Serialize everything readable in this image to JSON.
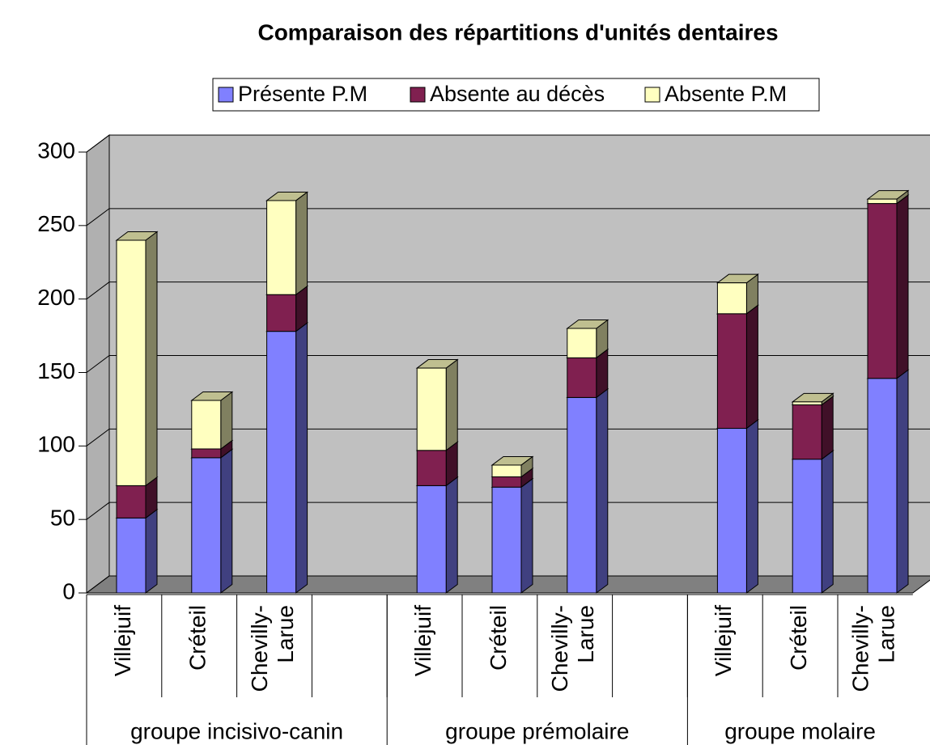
{
  "chart_data": {
    "type": "bar3d_stacked",
    "title": "Comparaison des répartitions d'unités dentaires",
    "categories": [
      "Villejuif",
      "Créteil",
      "Chevilly-Larue",
      null,
      "Villejuif",
      "Créteil",
      "Chevilly-Larue",
      null,
      "Villejuif",
      "Créteil",
      "Chevilly-Larue"
    ],
    "groups": [
      "groupe incisivo-canin",
      "groupe prémolaire",
      "groupe molaire"
    ],
    "series": [
      {
        "name": "Présente P.M",
        "color": "#8080ff",
        "values": [
          51,
          92,
          178,
          null,
          73,
          72,
          133,
          null,
          112,
          91,
          146
        ]
      },
      {
        "name": "Absente au décès",
        "color": "#802050",
        "values": [
          22,
          6,
          25,
          null,
          24,
          7,
          27,
          null,
          78,
          37,
          119
        ]
      },
      {
        "name": "Absente P.M",
        "color": "#ffffc0",
        "values": [
          167,
          33,
          64,
          null,
          56,
          8,
          20,
          null,
          21,
          2,
          3
        ]
      }
    ],
    "ylim": [
      0,
      300
    ],
    "yticks": [
      0,
      50,
      100,
      150,
      200,
      250,
      300
    ],
    "grid": true,
    "legend": "top"
  }
}
